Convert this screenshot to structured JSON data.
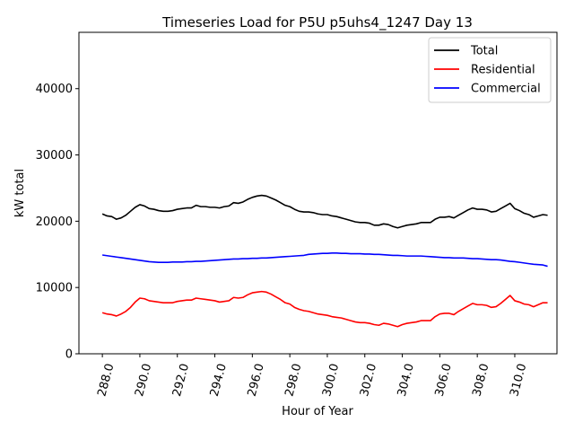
{
  "chart_data": {
    "type": "line",
    "title": "Timeseries Load for P5U p5uhs4_1247  Day 13",
    "xlabel": "Hour of Year",
    "ylabel": "kW total",
    "xlim": [
      286.75,
      312.25
    ],
    "ylim": [
      0,
      48500
    ],
    "x_ticks": [
      288,
      290,
      292,
      294,
      296,
      298,
      300,
      302,
      304,
      306,
      308,
      310
    ],
    "x_tick_labels": [
      "288.0",
      "290.0",
      "292.0",
      "294.0",
      "296.0",
      "298.0",
      "300.0",
      "302.0",
      "304.0",
      "306.0",
      "308.0",
      "310.0"
    ],
    "y_ticks": [
      0,
      10000,
      20000,
      30000,
      40000
    ],
    "y_tick_labels": [
      "0",
      "10000",
      "20000",
      "30000",
      "40000"
    ],
    "legend_position": "top-right",
    "x": [
      288.0,
      288.25,
      288.5,
      288.75,
      289.0,
      289.25,
      289.5,
      289.75,
      290.0,
      290.25,
      290.5,
      290.75,
      291.0,
      291.25,
      291.5,
      291.75,
      292.0,
      292.25,
      292.5,
      292.75,
      293.0,
      293.25,
      293.5,
      293.75,
      294.0,
      294.25,
      294.5,
      294.75,
      295.0,
      295.25,
      295.5,
      295.75,
      296.0,
      296.25,
      296.5,
      296.75,
      297.0,
      297.25,
      297.5,
      297.75,
      298.0,
      298.25,
      298.5,
      298.75,
      299.0,
      299.25,
      299.5,
      299.75,
      300.0,
      300.25,
      300.5,
      300.75,
      301.0,
      301.25,
      301.5,
      301.75,
      302.0,
      302.25,
      302.5,
      302.75,
      303.0,
      303.25,
      303.5,
      303.75,
      304.0,
      304.25,
      304.5,
      304.75,
      305.0,
      305.25,
      305.5,
      305.75,
      306.0,
      306.25,
      306.5,
      306.75,
      307.0,
      307.25,
      307.5,
      307.75,
      308.0,
      308.25,
      308.5,
      308.75,
      309.0,
      309.25,
      309.5,
      309.75,
      310.0,
      310.25,
      310.5,
      310.75,
      311.0,
      311.25,
      311.5,
      311.75
    ],
    "series": [
      {
        "name": "Total",
        "color": "#000000",
        "values": [
          21100,
          20800,
          20700,
          20300,
          20500,
          20900,
          21500,
          22100,
          22500,
          22300,
          21900,
          21800,
          21600,
          21500,
          21500,
          21600,
          21800,
          21900,
          22000,
          22000,
          22400,
          22200,
          22200,
          22100,
          22100,
          22000,
          22200,
          22300,
          22800,
          22700,
          22900,
          23300,
          23600,
          23800,
          23900,
          23800,
          23500,
          23200,
          22800,
          22400,
          22200,
          21800,
          21500,
          21400,
          21400,
          21300,
          21100,
          21000,
          21000,
          20800,
          20700,
          20500,
          20300,
          20100,
          19900,
          19800,
          19800,
          19700,
          19400,
          19400,
          19600,
          19500,
          19200,
          19000,
          19200,
          19400,
          19500,
          19600,
          19800,
          19800,
          19800,
          20300,
          20600,
          20600,
          20700,
          20500,
          20900,
          21300,
          21700,
          22000,
          21800,
          21800,
          21700,
          21400,
          21500,
          21900,
          22300,
          22700,
          21900,
          21600,
          21200,
          21000,
          20600,
          20800,
          21000,
          20900
        ]
      },
      {
        "name": "Residential",
        "color": "#ff0000",
        "values": [
          6200,
          6000,
          5900,
          5700,
          6000,
          6400,
          7000,
          7800,
          8400,
          8300,
          8000,
          7900,
          7800,
          7700,
          7700,
          7700,
          7900,
          8000,
          8100,
          8100,
          8400,
          8300,
          8200,
          8100,
          8000,
          7800,
          7900,
          8000,
          8500,
          8400,
          8500,
          8900,
          9200,
          9300,
          9400,
          9300,
          9000,
          8600,
          8200,
          7700,
          7500,
          7000,
          6700,
          6500,
          6400,
          6200,
          6000,
          5900,
          5800,
          5600,
          5500,
          5400,
          5200,
          5000,
          4800,
          4700,
          4700,
          4600,
          4400,
          4300,
          4600,
          4500,
          4300,
          4100,
          4400,
          4600,
          4700,
          4800,
          5000,
          5000,
          5000,
          5600,
          6000,
          6100,
          6100,
          5900,
          6400,
          6800,
          7200,
          7600,
          7400,
          7400,
          7300,
          7000,
          7100,
          7600,
          8200,
          8800,
          8000,
          7800,
          7500,
          7400,
          7100,
          7400,
          7700,
          7700
        ]
      },
      {
        "name": "Commercial",
        "color": "#0000ff",
        "values": [
          14900,
          14800,
          14700,
          14600,
          14500,
          14400,
          14300,
          14200,
          14100,
          14000,
          13900,
          13850,
          13800,
          13800,
          13800,
          13850,
          13850,
          13850,
          13900,
          13900,
          13950,
          13950,
          14000,
          14050,
          14100,
          14150,
          14200,
          14250,
          14300,
          14300,
          14350,
          14350,
          14400,
          14400,
          14450,
          14450,
          14500,
          14550,
          14600,
          14650,
          14700,
          14750,
          14800,
          14850,
          15000,
          15050,
          15100,
          15150,
          15150,
          15200,
          15200,
          15150,
          15150,
          15100,
          15100,
          15100,
          15050,
          15050,
          15000,
          15000,
          14950,
          14900,
          14850,
          14850,
          14800,
          14750,
          14750,
          14750,
          14750,
          14700,
          14650,
          14600,
          14550,
          14500,
          14500,
          14450,
          14450,
          14450,
          14400,
          14350,
          14350,
          14300,
          14250,
          14200,
          14200,
          14150,
          14050,
          13950,
          13900,
          13800,
          13700,
          13600,
          13500,
          13450,
          13400,
          13200
        ]
      }
    ]
  }
}
